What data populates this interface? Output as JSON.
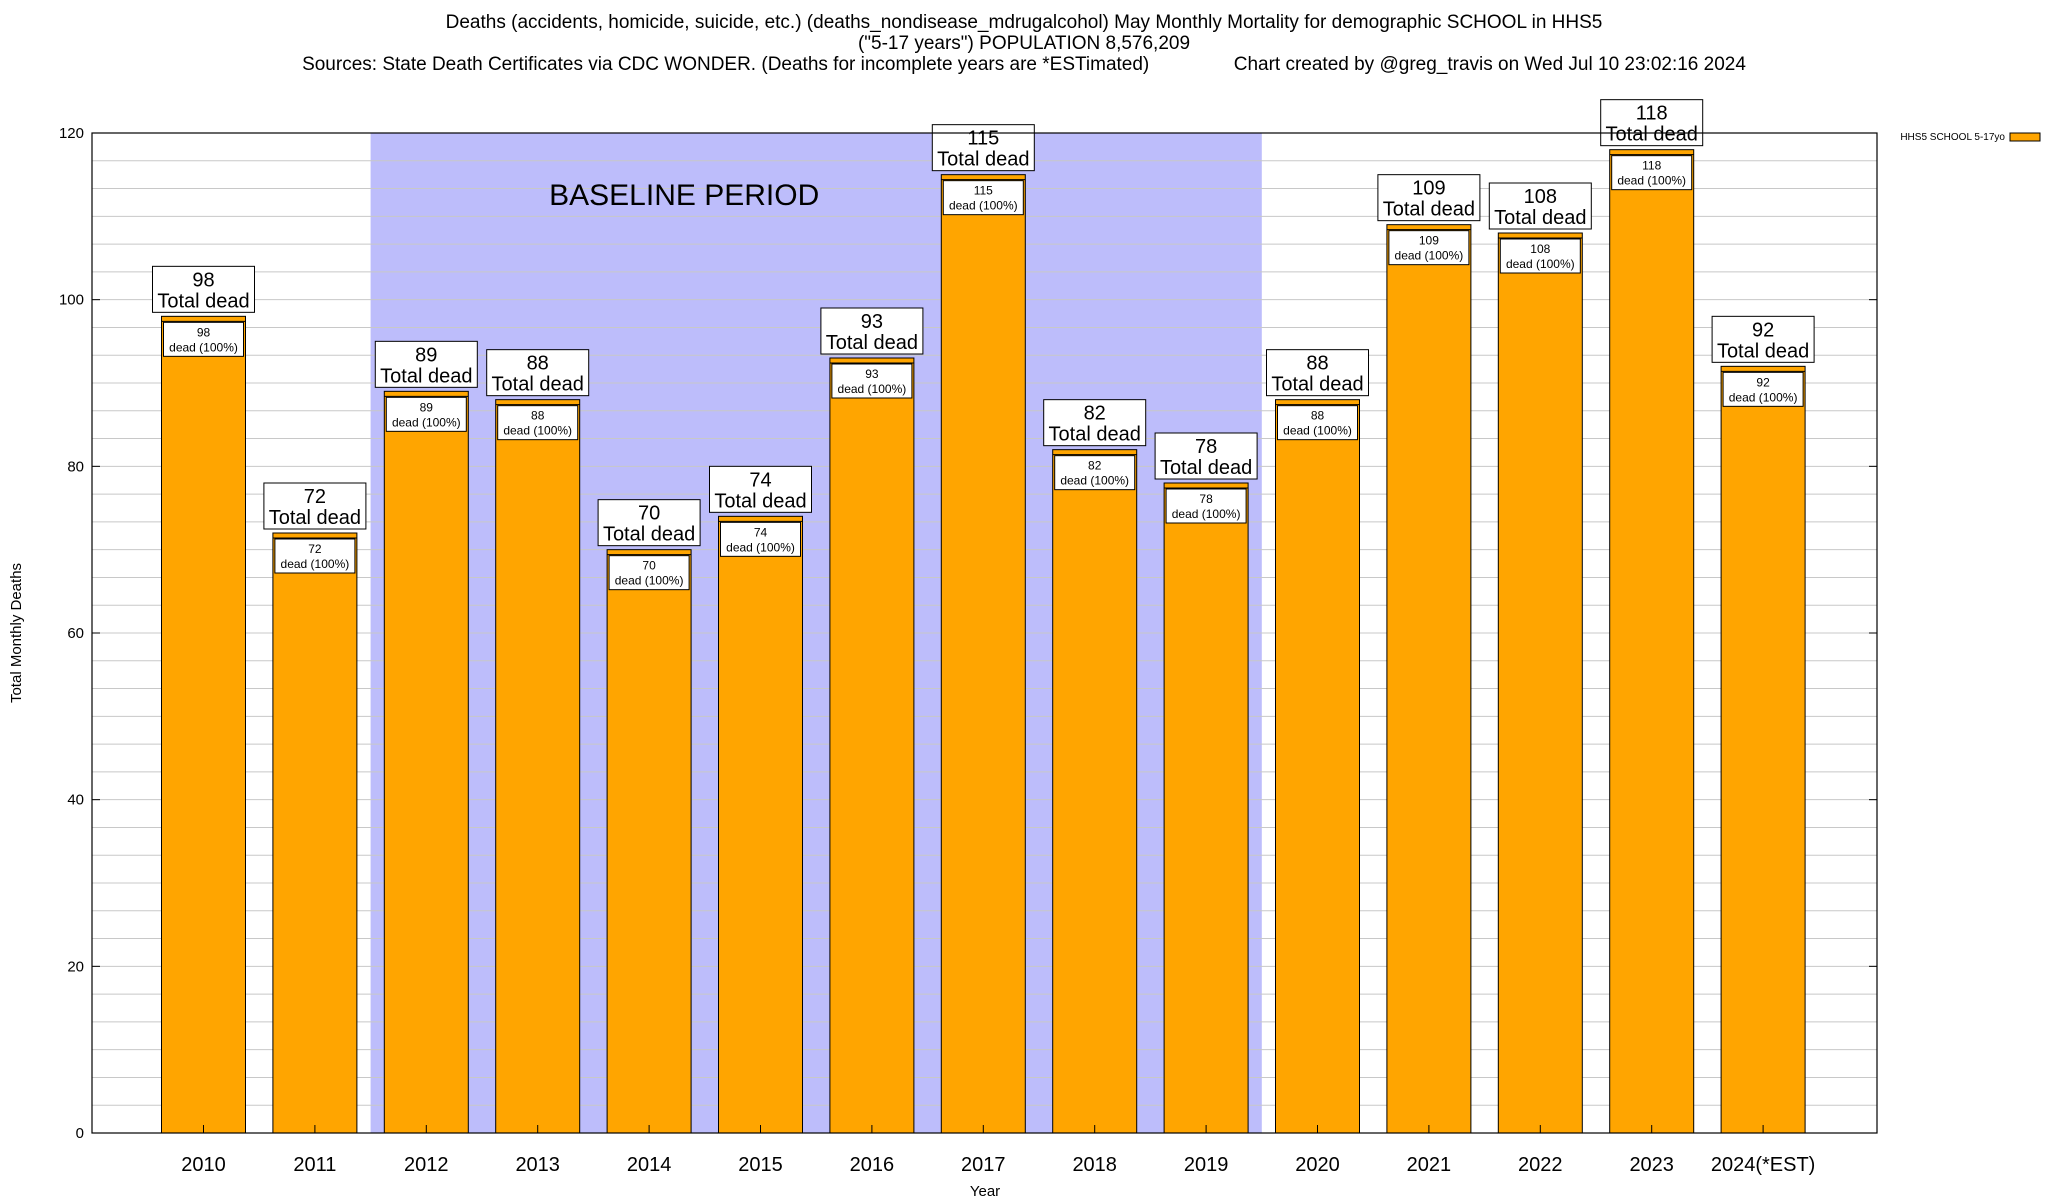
{
  "title_line1": "Deaths (accidents, homicide, suicide, etc.) (deaths_nondisease_mdrugalcohol) May Monthly Mortality for demographic SCHOOL in HHS5",
  "title_line2": "(\"5-17 years\") POPULATION 8,576,209",
  "title_line3": "Sources: State Death Certificates via CDC WONDER. (Deaths for incomplete years are *ESTimated)                Chart created by @greg_travis on Wed Jul 10 23:02:16 2024",
  "chart_data": {
    "type": "bar",
    "xlabel": "Year",
    "ylabel": "Total Monthly Deaths",
    "ylim": [
      0,
      120
    ],
    "yticks": [
      "0",
      "20",
      "40",
      "60",
      "80",
      "100",
      "120"
    ],
    "categories": [
      "2010",
      "2011",
      "2012",
      "2013",
      "2014",
      "2015",
      "2016",
      "2017",
      "2018",
      "2019",
      "2020",
      "2021",
      "2022",
      "2023",
      "2024(*EST)"
    ],
    "series": [
      {
        "name": "HHS5 SCHOOL 5-17yo",
        "values": [
          98,
          72,
          89,
          88,
          70,
          74,
          93,
          115,
          82,
          78,
          88,
          109,
          108,
          118,
          92
        ]
      }
    ],
    "total_label_values": [
      "98",
      "72",
      "89",
      "88",
      "70",
      "74",
      "93",
      "115",
      "82",
      "78",
      "88",
      "109",
      "108",
      "118",
      "92"
    ],
    "total_label_text": "Total dead",
    "inner_label_values": [
      "98",
      "72",
      "89",
      "88",
      "70",
      "74",
      "93",
      "115",
      "82",
      "78",
      "88",
      "109",
      "108",
      "118",
      "92"
    ],
    "inner_label_text": "dead (100%)",
    "baseline_period": {
      "label": "BASELINE PERIOD",
      "from_category": "2012",
      "to_category": "2019"
    },
    "grid": true,
    "legend_position": "top-right",
    "colors": {
      "bar": "#ffa500",
      "baseline": "#bdbdfb"
    }
  }
}
